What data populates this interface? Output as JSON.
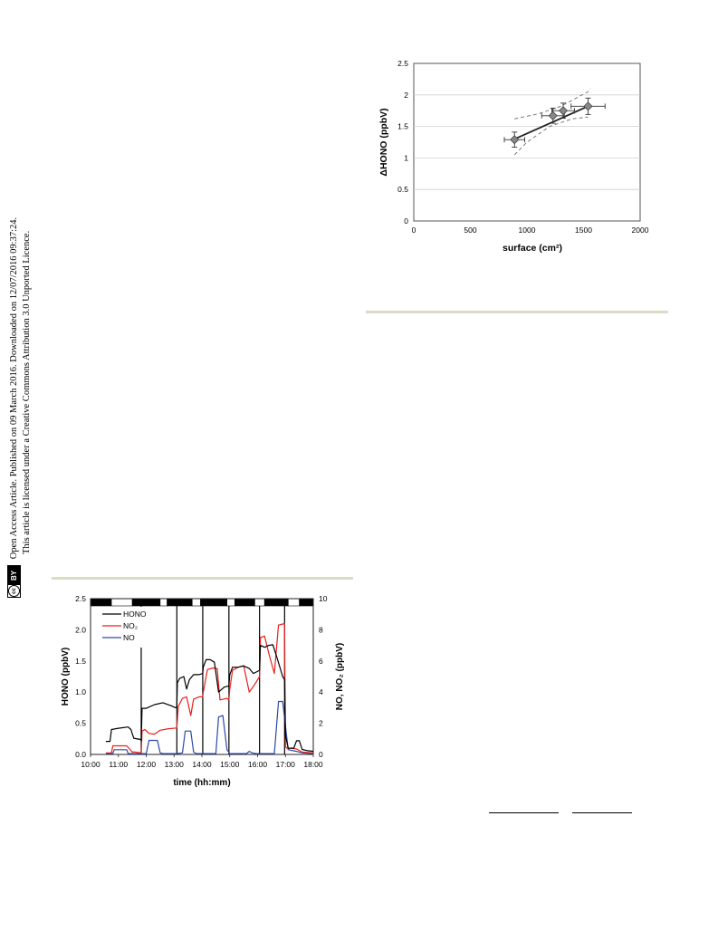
{
  "side_notice": {
    "cc_label": "cc",
    "by_label": "BY",
    "line1": "Open Access Article. Published on 09 March 2016. Downloaded on 12/07/2016 09:37:24.",
    "line2": "This article is licensed under a Creative Commons Attribution 3.0 Unported Licence."
  },
  "colors": {
    "rule": "#dcdcc4",
    "hono": "#000000",
    "no2": "#e8211c",
    "no": "#2b4aa8",
    "fit": "#222222",
    "ci": "#777777",
    "marker": "#888888"
  },
  "chart_data": [
    {
      "id": "hono-vs-surface",
      "type": "scatter",
      "xlabel": "surface (cm²)",
      "ylabel": "ΔHONO (ppbV)",
      "xlim": [
        0,
        2000
      ],
      "ylim": [
        0,
        2.5
      ],
      "xticks": [
        "0",
        "500",
        "1000",
        "1500",
        "2000"
      ],
      "yticks": [
        "0",
        "0.5",
        "1",
        "1.5",
        "2",
        "2.5"
      ],
      "grid": "horizontal",
      "points": [
        {
          "x": 890,
          "y": 1.29,
          "xerr": 90,
          "yerr": 0.12
        },
        {
          "x": 1230,
          "y": 1.67,
          "xerr": 100,
          "yerr": 0.12
        },
        {
          "x": 1320,
          "y": 1.75,
          "xerr": 100,
          "yerr": 0.12
        },
        {
          "x": 1540,
          "y": 1.82,
          "xerr": 150,
          "yerr": 0.13
        }
      ],
      "fit": {
        "x": [
          890,
          1540
        ],
        "y": [
          1.3,
          1.82
        ]
      },
      "confidence_upper": {
        "x": [
          890,
          1100,
          1300,
          1540,
          1560
        ],
        "y": [
          1.62,
          1.7,
          1.82,
          2.05,
          2.1
        ]
      },
      "confidence_lower": {
        "x": [
          890,
          1000,
          1200,
          1400,
          1540
        ],
        "y": [
          1.05,
          1.25,
          1.5,
          1.62,
          1.65
        ]
      }
    },
    {
      "id": "time-series",
      "type": "line",
      "xlabel": "time (hh:mm)",
      "ylabel": "HONO (ppbV)",
      "ylabel_right": "NO, NO₂ (ppbV)",
      "xlim": [
        10,
        18
      ],
      "ylim": [
        0,
        2.5
      ],
      "ylim_right": [
        0,
        10
      ],
      "xticks": [
        "10:00",
        "11:00",
        "12:00",
        "13:00",
        "14:00",
        "15:00",
        "16:00",
        "17:00",
        "18:00"
      ],
      "yticks": [
        "0.0",
        "0.5",
        "1.0",
        "1.5",
        "2.0",
        "2.5"
      ],
      "yticks_right": [
        "0",
        "2",
        "4",
        "6",
        "8",
        "10"
      ],
      "legend": [
        {
          "name": "HONO",
          "color": "#000000"
        },
        {
          "name": "NO₂",
          "color": "#e8211c"
        },
        {
          "name": "NO",
          "color": "#2b4aa8"
        }
      ],
      "legend_position": "top-left",
      "vertical_lines": [
        11.82,
        13.1,
        14.03,
        14.97,
        16.07,
        16.97
      ],
      "light_bar": [
        {
          "start": 10.0,
          "end": 10.75,
          "state": "dark"
        },
        {
          "start": 10.75,
          "end": 11.5,
          "state": "light"
        },
        {
          "start": 11.5,
          "end": 12.5,
          "state": "dark"
        },
        {
          "start": 12.5,
          "end": 12.75,
          "state": "light"
        },
        {
          "start": 12.75,
          "end": 13.65,
          "state": "dark"
        },
        {
          "start": 13.65,
          "end": 13.95,
          "state": "light"
        },
        {
          "start": 13.95,
          "end": 14.9,
          "state": "dark"
        },
        {
          "start": 14.9,
          "end": 15.18,
          "state": "light"
        },
        {
          "start": 15.18,
          "end": 15.9,
          "state": "dark"
        },
        {
          "start": 15.9,
          "end": 16.25,
          "state": "light"
        },
        {
          "start": 16.25,
          "end": 17.1,
          "state": "dark"
        },
        {
          "start": 17.1,
          "end": 17.5,
          "state": "light"
        },
        {
          "start": 17.5,
          "end": 18.0,
          "state": "dark"
        }
      ],
      "series": [
        {
          "name": "HONO",
          "axis": "left",
          "color": "#000000",
          "x": [
            10.55,
            10.7,
            10.75,
            11.0,
            11.35,
            11.45,
            11.55,
            11.8,
            11.82,
            11.85,
            12.0,
            12.3,
            12.6,
            12.9,
            13.05,
            13.1,
            13.12,
            13.2,
            13.35,
            13.45,
            13.55,
            13.7,
            13.9,
            14.03,
            14.05,
            14.15,
            14.3,
            14.45,
            14.6,
            14.8,
            14.97,
            15.0,
            15.1,
            15.3,
            15.5,
            15.7,
            15.85,
            16.07,
            16.1,
            16.25,
            16.4,
            16.55,
            16.7,
            16.9,
            16.97,
            17.0,
            17.1,
            17.3,
            17.4,
            17.5,
            17.6,
            17.8,
            18.0
          ],
          "y": [
            0.21,
            0.21,
            0.4,
            0.42,
            0.44,
            0.4,
            0.26,
            0.24,
            0.22,
            0.74,
            0.74,
            0.8,
            0.83,
            0.78,
            0.75,
            0.75,
            1.15,
            1.22,
            1.25,
            1.05,
            1.2,
            1.28,
            1.28,
            1.3,
            1.4,
            1.52,
            1.52,
            1.48,
            1.0,
            1.08,
            1.1,
            1.28,
            1.4,
            1.4,
            1.42,
            1.38,
            1.3,
            1.35,
            1.75,
            1.72,
            1.75,
            1.76,
            1.55,
            1.25,
            1.2,
            0.3,
            0.1,
            0.1,
            0.22,
            0.22,
            0.08,
            0.06,
            0.05
          ]
        },
        {
          "name": "NO₂",
          "axis": "right",
          "color": "#e8211c",
          "x": [
            10.55,
            10.75,
            10.8,
            11.3,
            11.5,
            11.6,
            11.82,
            11.85,
            11.95,
            12.1,
            12.3,
            12.5,
            12.8,
            13.1,
            13.15,
            13.3,
            13.45,
            13.6,
            13.7,
            13.9,
            14.03,
            14.05,
            14.2,
            14.4,
            14.55,
            14.65,
            14.9,
            14.97,
            15.0,
            15.1,
            15.3,
            15.5,
            15.7,
            15.9,
            16.07,
            16.1,
            16.25,
            16.4,
            16.6,
            16.75,
            16.97,
            17.0,
            17.05,
            17.2,
            17.4,
            17.6,
            18.0
          ],
          "y": [
            0.1,
            0.1,
            0.55,
            0.55,
            0.15,
            0.15,
            0.1,
            1.5,
            1.6,
            1.35,
            1.3,
            1.55,
            1.65,
            1.7,
            3.1,
            3.6,
            3.7,
            2.5,
            3.55,
            3.7,
            3.7,
            4.0,
            5.45,
            5.55,
            5.5,
            3.5,
            3.6,
            3.5,
            4.2,
            5.4,
            5.6,
            5.7,
            4.0,
            4.5,
            5.0,
            7.5,
            7.6,
            6.5,
            5.2,
            8.3,
            8.4,
            0.5,
            0.4,
            0.4,
            0.35,
            0.15,
            0.1
          ]
        },
        {
          "name": "NO",
          "axis": "right",
          "color": "#2b4aa8",
          "x": [
            10.55,
            10.8,
            10.85,
            11.3,
            11.35,
            11.82,
            12.0,
            12.1,
            12.4,
            12.5,
            12.6,
            13.1,
            13.3,
            13.4,
            13.6,
            13.7,
            13.8,
            14.0,
            14.5,
            14.6,
            14.75,
            14.9,
            15.0,
            15.6,
            15.7,
            15.8,
            15.95,
            16.1,
            16.6,
            16.75,
            16.9,
            17.1,
            17.4,
            17.6,
            18.0
          ],
          "y": [
            0.05,
            0.05,
            0.3,
            0.3,
            0.05,
            0.05,
            0.05,
            0.9,
            0.9,
            0.1,
            0.05,
            0.05,
            0.1,
            1.5,
            1.5,
            0.15,
            0.05,
            0.05,
            0.05,
            2.4,
            2.5,
            0.3,
            0.05,
            0.05,
            0.2,
            0.1,
            0.05,
            0.05,
            0.05,
            3.4,
            3.4,
            0.3,
            0.2,
            0.1,
            0.05
          ]
        }
      ]
    }
  ]
}
